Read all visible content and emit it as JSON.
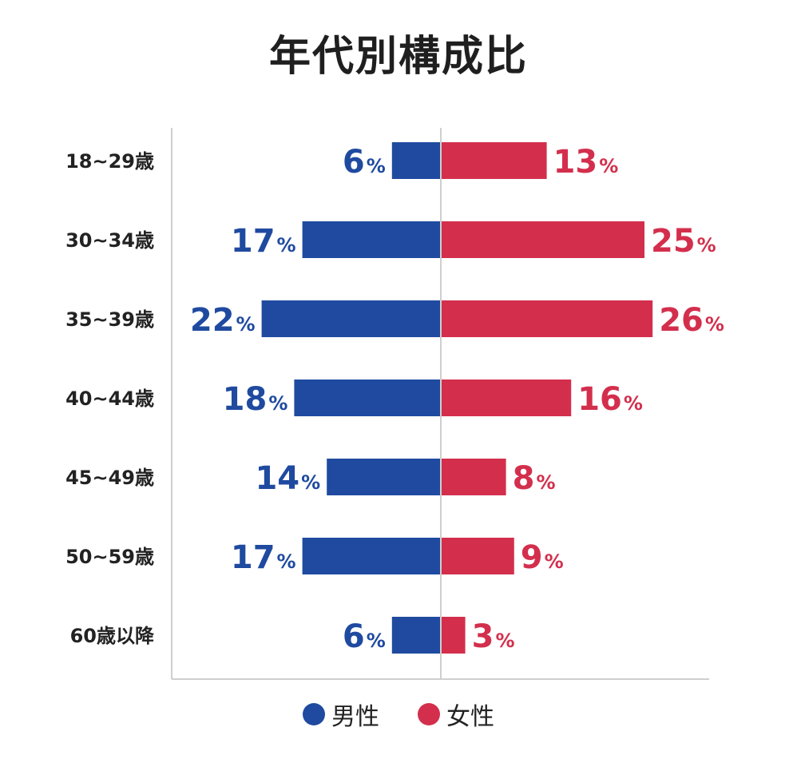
{
  "chart_data": {
    "type": "bar",
    "title": "年代別構成比",
    "categories": [
      "18~29歳",
      "30~34歳",
      "35~39歳",
      "40~44歳",
      "45~49歳",
      "50~59歳",
      "60歳以降"
    ],
    "series": [
      {
        "name": "男性",
        "values": [
          6,
          17,
          22,
          18,
          14,
          17,
          6
        ],
        "color": "#1f4aa0"
      },
      {
        "name": "女性",
        "values": [
          13,
          25,
          26,
          16,
          8,
          9,
          3
        ],
        "color": "#d32f4d"
      }
    ],
    "unit": "%",
    "xlim": [
      -33,
      33
    ],
    "grid": false,
    "legend": "bottom"
  },
  "legend": {
    "male_label": "男性",
    "female_label": "女性"
  }
}
